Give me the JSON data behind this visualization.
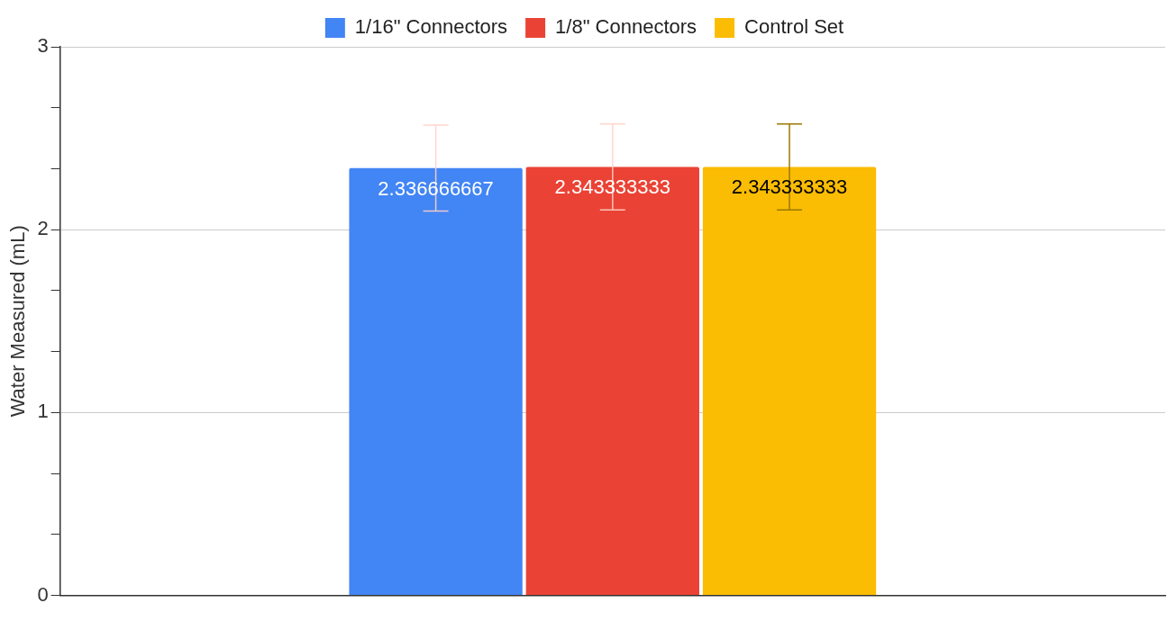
{
  "chart_data": {
    "type": "bar",
    "ylabel": "Water Measured (mL)",
    "categories": [
      null
    ],
    "series": [
      {
        "name": "1/16\" Connectors",
        "color": "#4285f4",
        "values": [
          2.336666667
        ],
        "errors": [
          0.235
        ]
      },
      {
        "name": "1/8\" Connectors",
        "color": "#ea4335",
        "values": [
          2.343333333
        ],
        "errors": [
          0.235
        ]
      },
      {
        "name": "Control Set",
        "color": "#fbbc04",
        "values": [
          2.343333333
        ],
        "errors": [
          0.235
        ]
      }
    ],
    "ylim": [
      0,
      3
    ],
    "yticks": [
      0,
      {
        "value": 0.333,
        "label": null
      },
      {
        "value": 0.667,
        "label": null
      },
      1,
      {
        "value": 1.333,
        "label": null
      },
      {
        "value": 1.667,
        "label": null
      },
      2,
      {
        "value": 2.333,
        "label": null
      },
      {
        "value": 2.667,
        "label": null
      },
      3
    ],
    "grid": "y",
    "legend": "top",
    "data_labels": true
  }
}
